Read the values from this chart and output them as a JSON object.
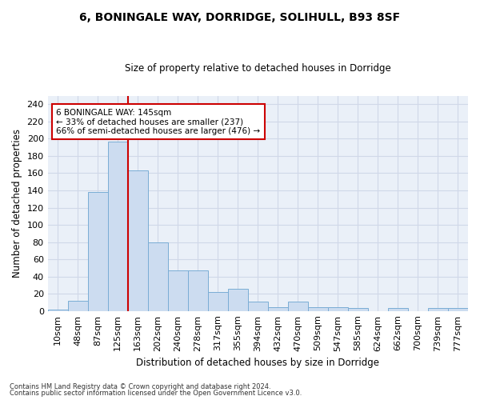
{
  "title1": "6, BONINGALE WAY, DORRIDGE, SOLIHULL, B93 8SF",
  "title2": "Size of property relative to detached houses in Dorridge",
  "xlabel": "Distribution of detached houses by size in Dorridge",
  "ylabel": "Number of detached properties",
  "bin_labels": [
    "10sqm",
    "48sqm",
    "87sqm",
    "125sqm",
    "163sqm",
    "202sqm",
    "240sqm",
    "278sqm",
    "317sqm",
    "355sqm",
    "394sqm",
    "432sqm",
    "470sqm",
    "509sqm",
    "547sqm",
    "585sqm",
    "624sqm",
    "662sqm",
    "700sqm",
    "739sqm",
    "777sqm"
  ],
  "bar_heights": [
    2,
    12,
    138,
    197,
    163,
    80,
    47,
    47,
    22,
    26,
    11,
    4,
    11,
    4,
    4,
    3,
    0,
    3,
    0,
    3,
    3
  ],
  "bar_color": "#ccdcf0",
  "bar_edgecolor": "#7aadd5",
  "vline_color": "#cc0000",
  "annotation_line1": "6 BONINGALE WAY: 145sqm",
  "annotation_line2": "← 33% of detached houses are smaller (237)",
  "annotation_line3": "66% of semi-detached houses are larger (476) →",
  "annotation_boxcolor": "white",
  "annotation_edgecolor": "#cc0000",
  "ylim": [
    0,
    250
  ],
  "yticks": [
    0,
    20,
    40,
    60,
    80,
    100,
    120,
    140,
    160,
    180,
    200,
    220,
    240
  ],
  "grid_color": "#d0d8e8",
  "footer1": "Contains HM Land Registry data © Crown copyright and database right 2024.",
  "footer2": "Contains public sector information licensed under the Open Government Licence v3.0.",
  "bg_color": "#eaf0f8"
}
